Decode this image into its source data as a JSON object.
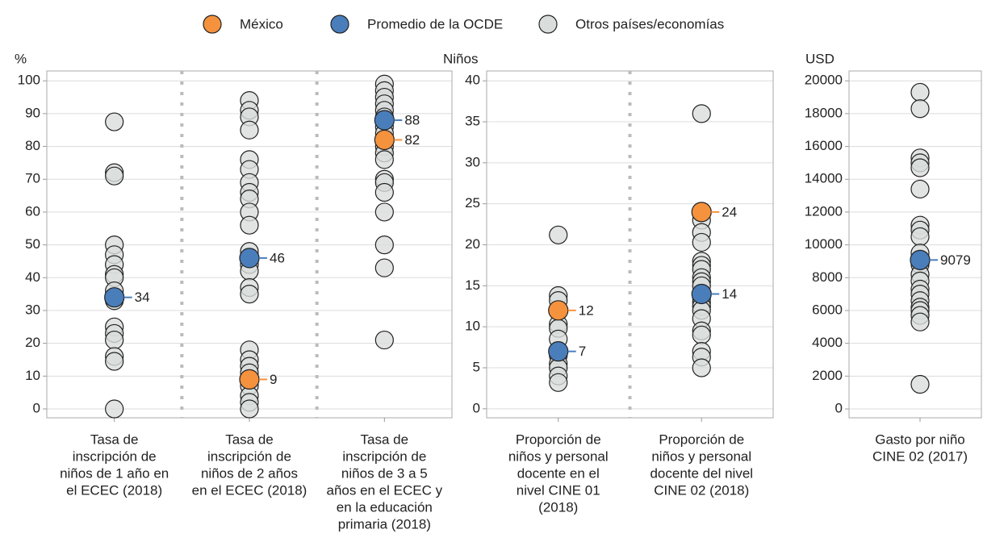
{
  "legend": [
    {
      "name": "México",
      "color": "#f5923e"
    },
    {
      "name": "Promedio de la OCDE",
      "color": "#4a7ebb"
    },
    {
      "name": "Otros países/economías",
      "color": "#d9dddc"
    }
  ],
  "chart_data": [
    {
      "type": "strip",
      "y_label": "%",
      "ylim": [
        -2.7,
        103
      ],
      "yticks": [
        0,
        10,
        20,
        30,
        40,
        50,
        60,
        70,
        80,
        90,
        100
      ],
      "categories": [
        [
          "Tasa de",
          "inscripción de",
          "niños de 1 año en",
          "el ECEC (2018)"
        ],
        [
          "Tasa de",
          "inscripción de",
          "niños de 2 años",
          "en el ECEC (2018)"
        ],
        [
          "Tasa de",
          "inscripción de",
          "niños de 3 a 5",
          "años en el ECEC y",
          "en la educación",
          "primaria (2018)"
        ]
      ],
      "series": [
        {
          "values": [
            null,
            9,
            82
          ]
        },
        {
          "values": [
            34,
            46,
            88
          ]
        },
        {
          "values": [
            [
              87.5,
              72,
              71,
              50,
              47,
              44,
              41,
              40,
              36,
              33,
              25,
              23,
              21,
              16,
              14.5,
              0
            ],
            [
              94,
              91,
              89,
              85,
              76,
              73,
              69,
              66,
              64,
              60,
              56,
              48,
              44,
              42,
              37,
              35,
              18,
              15,
              13,
              11,
              7,
              4,
              2,
              0
            ],
            [
              99,
              97,
              95,
              93,
              91,
              89,
              86,
              84,
              80,
              78,
              76,
              70,
              69,
              66,
              60,
              50,
              43,
              21
            ]
          ]
        }
      ]
    },
    {
      "type": "strip",
      "y_label": "Niños",
      "ylim": [
        -1.1,
        41.2
      ],
      "yticks": [
        0,
        5,
        10,
        15,
        20,
        25,
        30,
        35,
        40
      ],
      "categories": [
        [
          "Proporción de",
          "niños y personal",
          "docente en el",
          "nivel CINE 01",
          "(2018)"
        ],
        [
          "Proporción de",
          "niños y personal",
          "docente del nivel",
          "CINE 02 (2018)"
        ]
      ],
      "series": [
        {
          "values": [
            12,
            24
          ]
        },
        {
          "values": [
            7,
            14
          ]
        },
        {
          "values": [
            [
              21.2,
              13.8,
              13.2,
              10.3,
              9.8,
              8.5,
              6.5,
              5.5,
              5,
              4,
              3.2
            ],
            [
              36,
              23,
              21.5,
              20.3,
              18,
              17.5,
              17,
              16,
              15.5,
              15,
              13.5,
              13,
              12.5,
              12,
              11,
              9.5,
              9,
              7,
              6.3,
              5
            ]
          ]
        }
      ]
    },
    {
      "type": "strip",
      "y_label": "USD",
      "ylim": [
        -540,
        20600
      ],
      "yticks": [
        0,
        2000,
        4000,
        6000,
        8000,
        10000,
        12000,
        14000,
        16000,
        18000,
        20000
      ],
      "categories": [
        [
          "Gasto por niño",
          "CINE 02 (2017)"
        ]
      ],
      "series": [
        {
          "values": [
            null
          ]
        },
        {
          "values": [
            9079
          ]
        },
        {
          "values": [
            [
              19300,
              18300,
              15300,
              15000,
              14700,
              13400,
              11200,
              10900,
              10500,
              9500,
              8800,
              8200,
              7800,
              7300,
              7000,
              6600,
              6200,
              6000,
              5700,
              5300,
              1500
            ]
          ]
        }
      ]
    }
  ]
}
